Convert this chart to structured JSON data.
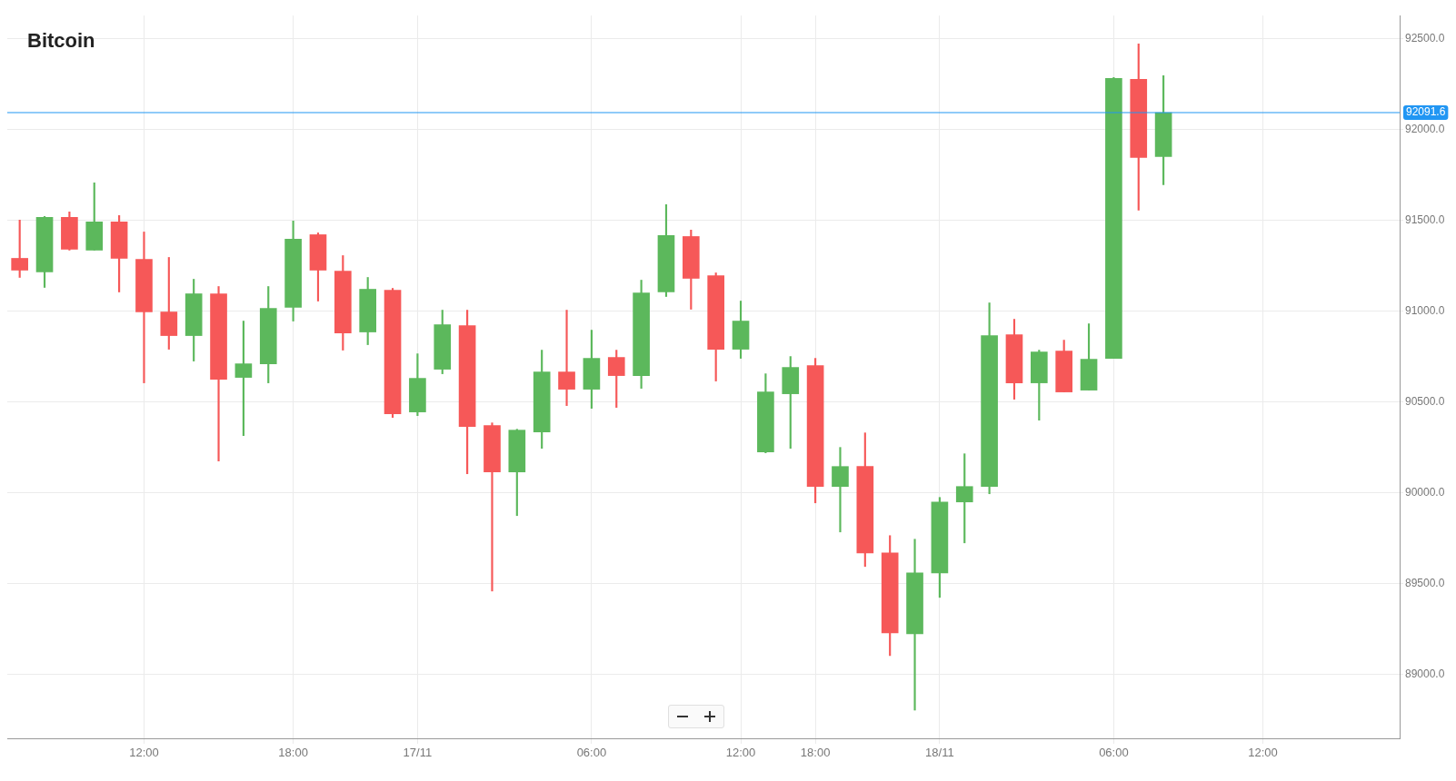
{
  "chart_data": {
    "type": "candlestick",
    "title": "Bitcoin",
    "categories": [
      null,
      null,
      null,
      null,
      null,
      "12:00",
      null,
      null,
      null,
      null,
      null,
      "18:00",
      null,
      null,
      null,
      null,
      "17/11",
      null,
      null,
      null,
      null,
      null,
      null,
      "06:00",
      null,
      null,
      null,
      null,
      null,
      "12:00",
      null,
      null,
      "18:00",
      null,
      null,
      null,
      null,
      "18/11",
      null,
      null,
      null,
      null,
      null,
      null,
      "06:00",
      null,
      null,
      null,
      null,
      null,
      "12:00",
      null,
      null,
      null,
      null,
      null
    ],
    "ohlc": [
      [
        91290,
        91500,
        91185,
        91225
      ],
      [
        91215,
        91520,
        91130,
        91515
      ],
      [
        91515,
        91545,
        91335,
        91340
      ],
      [
        91335,
        91705,
        91335,
        91490
      ],
      [
        91490,
        91525,
        91105,
        91290
      ],
      [
        91285,
        91435,
        90605,
        90995
      ],
      [
        90995,
        91295,
        90790,
        90865
      ],
      [
        90865,
        91175,
        90725,
        91095
      ],
      [
        91095,
        91135,
        90175,
        90625
      ],
      [
        90635,
        90945,
        90315,
        90710
      ],
      [
        90710,
        91135,
        90605,
        91015
      ],
      [
        91020,
        91495,
        90945,
        91395
      ],
      [
        91420,
        91430,
        91055,
        91225
      ],
      [
        91220,
        91305,
        90785,
        90880
      ],
      [
        90885,
        91185,
        90815,
        91120
      ],
      [
        91115,
        91125,
        90415,
        90435
      ],
      [
        90445,
        90765,
        90425,
        90630
      ],
      [
        90680,
        91005,
        90655,
        90925
      ],
      [
        90920,
        91005,
        90105,
        90365
      ],
      [
        90370,
        90385,
        89460,
        90115
      ],
      [
        90115,
        90350,
        89875,
        90345
      ],
      [
        90335,
        90785,
        90245,
        90665
      ],
      [
        90665,
        91005,
        90480,
        90570
      ],
      [
        90570,
        90895,
        90465,
        90740
      ],
      [
        90745,
        90785,
        90470,
        90645
      ],
      [
        90645,
        91170,
        90575,
        91100
      ],
      [
        91105,
        91585,
        91080,
        91415
      ],
      [
        91410,
        91445,
        91010,
        91180
      ],
      [
        91195,
        91210,
        90615,
        90790
      ],
      [
        90790,
        91055,
        90740,
        90945
      ],
      [
        90225,
        90655,
        90220,
        90555
      ],
      [
        90545,
        90750,
        90245,
        90690
      ],
      [
        90700,
        90740,
        89945,
        90035
      ],
      [
        90035,
        90250,
        89785,
        90145
      ],
      [
        90145,
        90330,
        89595,
        89670
      ],
      [
        89670,
        89765,
        89105,
        89230
      ],
      [
        89225,
        89745,
        88805,
        89560
      ],
      [
        89560,
        89975,
        89425,
        89950
      ],
      [
        89950,
        90215,
        89725,
        90035
      ],
      [
        90035,
        91045,
        89995,
        90865
      ],
      [
        90870,
        90955,
        90515,
        90605
      ],
      [
        90605,
        90785,
        90400,
        90775
      ],
      [
        90780,
        90840,
        90555,
        90555
      ],
      [
        90565,
        90930,
        90565,
        90735
      ],
      [
        90740,
        92285,
        90740,
        92280
      ],
      [
        92275,
        92470,
        91555,
        91845
      ],
      [
        91850,
        92295,
        91695,
        92091.6
      ],
      null,
      null,
      null,
      null,
      null,
      null,
      null,
      null,
      null
    ],
    "colors": [
      "#f65858",
      "#5cb85c",
      "#f65858",
      "#5cb85c",
      "#f65858",
      "#f65858",
      "#f65858",
      "#5cb85c",
      "#f65858",
      "#5cb85c",
      "#5cb85c",
      "#5cb85c",
      "#f65858",
      "#f65858",
      "#5cb85c",
      "#f65858",
      "#5cb85c",
      "#5cb85c",
      "#f65858",
      "#f65858",
      "#5cb85c",
      "#5cb85c",
      "#f65858",
      "#5cb85c",
      "#f65858",
      "#5cb85c",
      "#5cb85c",
      "#f65858",
      "#f65858",
      "#5cb85c",
      "#5cb85c",
      "#5cb85c",
      "#f65858",
      "#5cb85c",
      "#f65858",
      "#f65858",
      "#5cb85c",
      "#5cb85c",
      "#5cb85c",
      "#5cb85c",
      "#f65858",
      "#5cb85c",
      "#f65858",
      "#5cb85c",
      "#5cb85c",
      "#f65858",
      "#5cb85c",
      null,
      null,
      null,
      null,
      null,
      null,
      null,
      null,
      null
    ],
    "ylim": [
      88650,
      92625
    ],
    "yticks": [
      {
        "value": 89000,
        "label": "89000.0"
      },
      {
        "value": 89500,
        "label": "89500.0"
      },
      {
        "value": 90000,
        "label": "90000.0"
      },
      {
        "value": 90500,
        "label": "90500.0"
      },
      {
        "value": 91000,
        "label": "91000.0"
      },
      {
        "value": 91500,
        "label": "91500.0"
      },
      {
        "value": 92000,
        "label": "92000.0"
      },
      {
        "value": 92500,
        "label": "92500.0"
      }
    ],
    "ref_lines": [
      {
        "axis": "y",
        "value": 92091.6,
        "label": "92091.6",
        "color": "#2196f3"
      }
    ],
    "grid": true,
    "legend": false
  }
}
